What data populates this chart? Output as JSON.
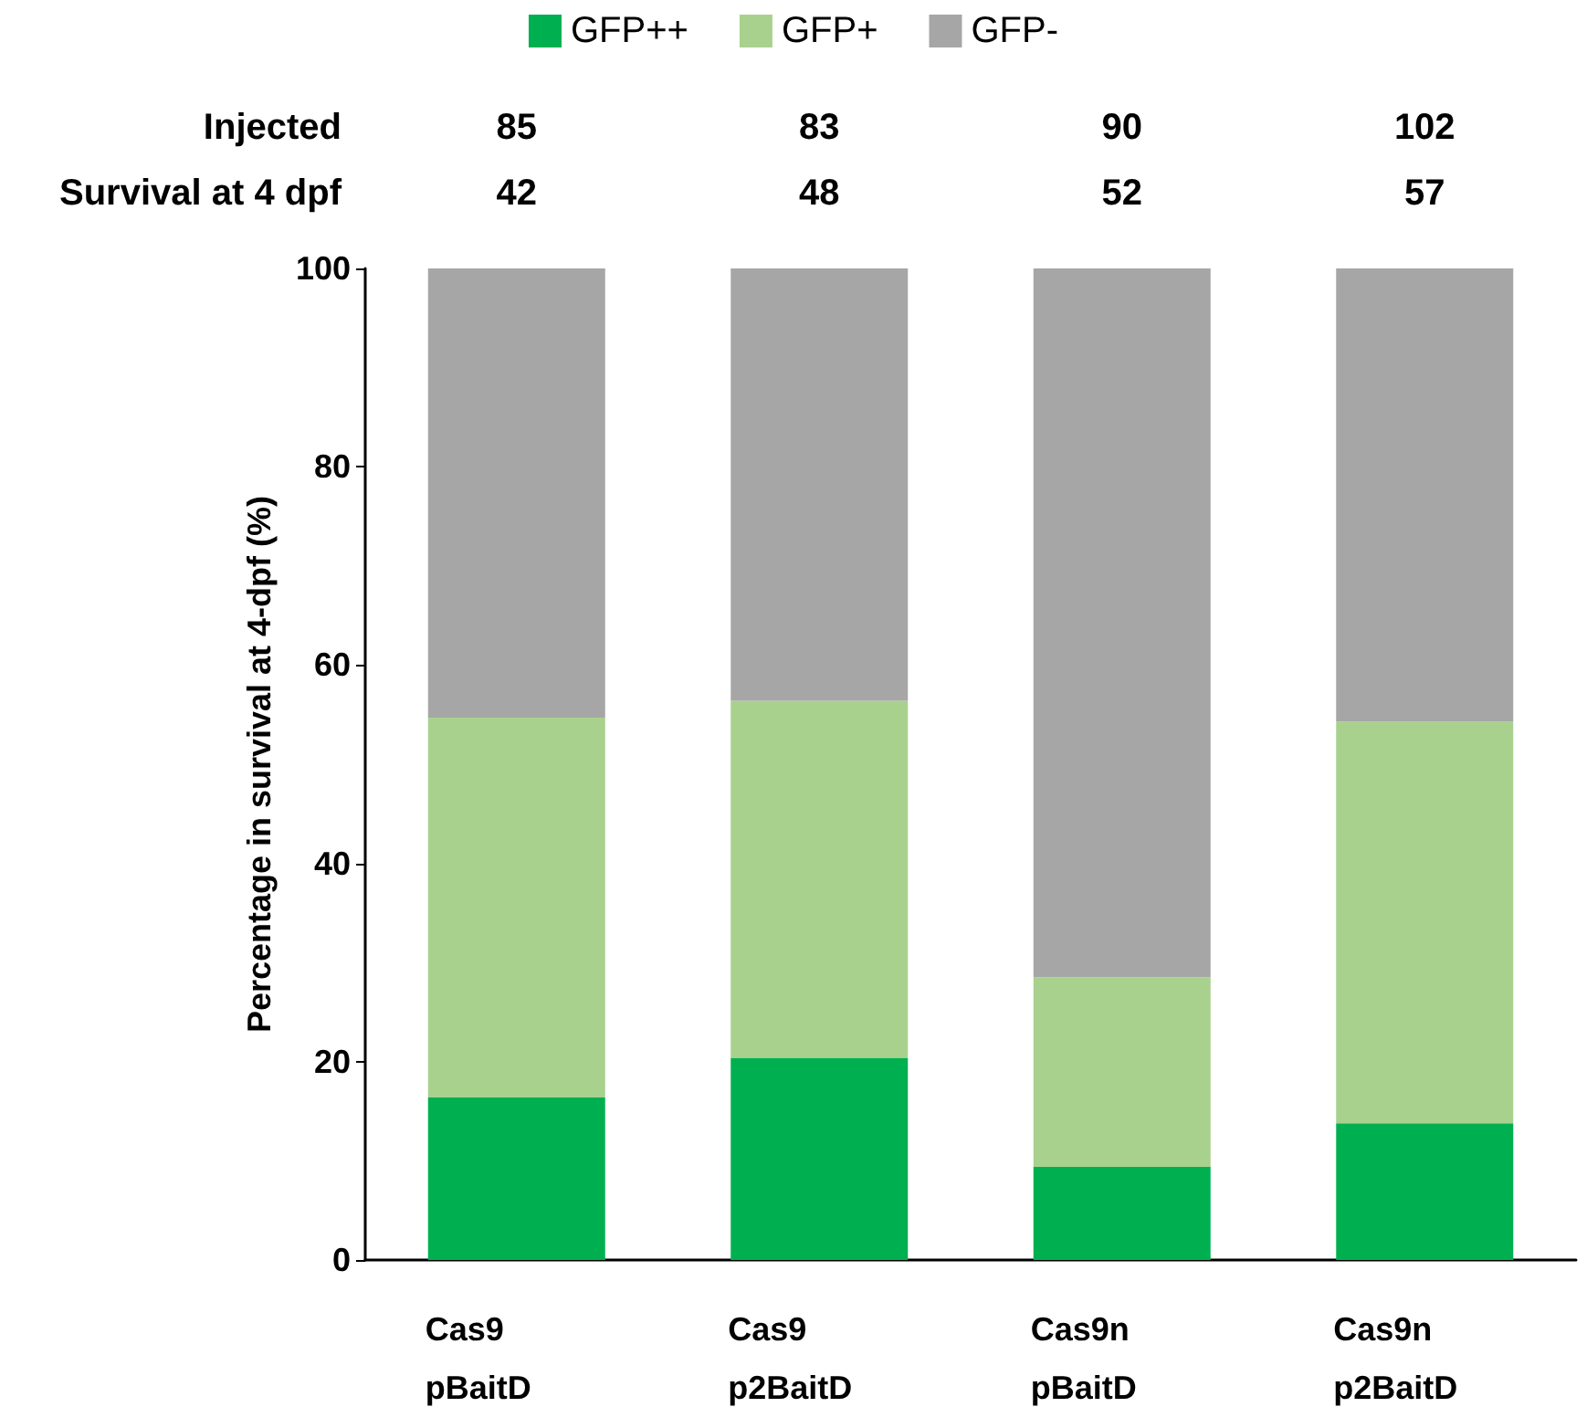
{
  "chart_data": {
    "type": "bar",
    "stacked": true,
    "ylabel": "Percentage in survival at 4-dpf (%)",
    "categories": [
      "Cas9\npBaitD",
      "Cas9\np2BaitD",
      "Cas9n\npBaitD",
      "Cas9n\np2BaitD"
    ],
    "series": [
      {
        "name": "GFP++",
        "color": "#00b050",
        "values": [
          16.4,
          20.4,
          9.4,
          13.8
        ]
      },
      {
        "name": "GFP+",
        "color": "#a9d18e",
        "values": [
          38.3,
          36.0,
          19.1,
          40.5
        ]
      },
      {
        "name": "GFP-",
        "color": "#a6a6a6",
        "values": [
          45.3,
          43.6,
          71.5,
          45.7
        ]
      }
    ],
    "ylim": [
      0,
      100
    ],
    "yticks": [
      0,
      20,
      40,
      60,
      80,
      100
    ],
    "grid": false,
    "legend": "top",
    "annotations": [
      "Injected",
      "85",
      "83",
      "90",
      "102",
      "Survival at 4 dpf",
      "42",
      "48",
      "52",
      "57"
    ]
  }
}
